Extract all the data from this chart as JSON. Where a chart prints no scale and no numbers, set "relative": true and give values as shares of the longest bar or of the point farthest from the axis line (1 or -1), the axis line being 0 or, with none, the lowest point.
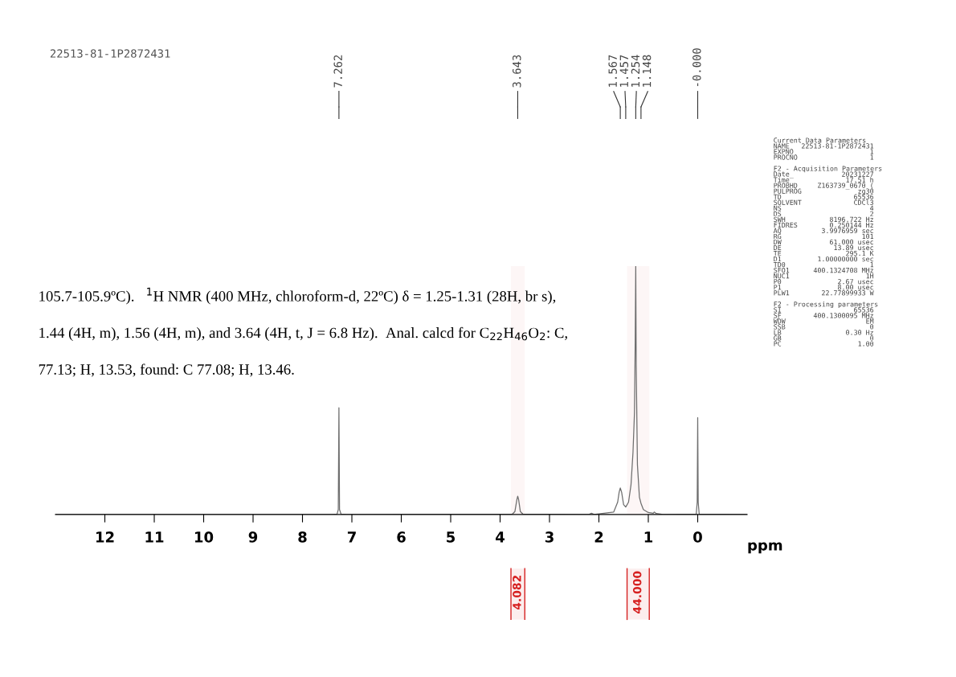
{
  "chart_data": {
    "type": "line",
    "relative": true,
    "title": "22513-81-1P2872431",
    "xlabel": "ppm",
    "x": [
      13,
      7.4,
      7.3,
      7.275,
      7.262,
      7.25,
      7.22,
      7.1,
      3.75,
      3.7,
      3.66,
      3.643,
      3.625,
      3.59,
      3.54,
      2.2,
      2.15,
      2.1,
      1.7,
      1.62,
      1.59,
      1.567,
      1.54,
      1.5,
      1.457,
      1.4,
      1.35,
      1.31,
      1.28,
      1.265,
      1.254,
      1.245,
      1.22,
      1.18,
      1.148,
      1.1,
      1.0,
      0.9,
      0.88,
      0.84,
      0.7,
      0.03,
      0.01,
      0.0,
      -0.01,
      -0.03,
      -1
    ],
    "series": [
      {
        "color": "#6e6e6e",
        "values": [
          0,
          0,
          0.002,
          0.02,
          0.43,
          0.02,
          0.002,
          0,
          0.002,
          0.012,
          0.06,
          0.074,
          0.06,
          0.012,
          0.002,
          0,
          0.005,
          0,
          0.01,
          0.05,
          0.09,
          0.107,
          0.09,
          0.04,
          0.03,
          0.05,
          0.12,
          0.25,
          0.41,
          0.7,
          1.0,
          0.6,
          0.2,
          0.07,
          0.045,
          0.02,
          0.008,
          0.005,
          0.01,
          0.004,
          0,
          0.002,
          0.05,
          0.39,
          0.05,
          0.002,
          0
        ]
      }
    ],
    "xlim": [
      13,
      -1
    ],
    "xticks": [
      12,
      11,
      10,
      9,
      8,
      7,
      6,
      5,
      4,
      3,
      2,
      1,
      0
    ],
    "grid": false,
    "legend": false,
    "marker": "none",
    "line_style": "solid",
    "bands": [
      {
        "axis": "x",
        "from": 3.78,
        "to": 3.5,
        "label": "4.082",
        "color": "#d62020"
      },
      {
        "axis": "x",
        "from": 1.43,
        "to": 0.98,
        "label": "44.000",
        "color": "#d62020"
      }
    ],
    "annotations": [
      {
        "text": "7.262",
        "x": 7.262
      },
      {
        "text": "3.643",
        "x": 3.643
      },
      {
        "text": "1.567",
        "x": 1.567
      },
      {
        "text": "1.457",
        "x": 1.457
      },
      {
        "text": "1.254",
        "x": 1.254
      },
      {
        "text": "1.148",
        "x": 1.148
      },
      {
        "text": "-0.000",
        "x": 0.0
      },
      "105.7-105.9ºC).   $^{1}$H NMR (400 MHz, chloroform-d, 22ºC) δ = 1.25-1.31 (28H, br s),",
      "1.44 (4H, m), 1.56 (4H, m), and 3.64 (4H, t, J = 6.8 Hz).  Anal. calcd for C$_{22}$H$_{46}$O$_{2}$: C,",
      "77.13; H, 13.53, found: C 77.08; H, 13.46.",
      "Current Data Parameters",
      "NAME\t22513-81-1P2872431",
      "EXPNO\t1",
      "PROCNO\t1",
      "F2 - Acquisition Parameters",
      "Date_\t20231227",
      "Time\t17.51 h",
      "PROBHD\tZ163739_0670 (",
      "PULPROG\tzg30",
      "TD\t65536",
      "SOLVENT\tCDCl3",
      "NS\t4",
      "DS\t2",
      "SWH\t8196.722 Hz",
      "FIDRES\t0.250144 Hz",
      "AQ\t3.9976959 sec",
      "RG\t101",
      "DW\t61.000 usec",
      "DE\t13.89 usec",
      "TE\t295.1 K",
      "D1\t1.00000000 sec",
      "TD0\t1",
      "SFO1\t400.1324708 MHz",
      "NUC1\t1H",
      "P0\t2.67 usec",
      "P1\t8.00 usec",
      "PLW1\t22.77899933 W",
      "F2 - Processing parameters",
      "SI\t65536",
      "SF\t400.1300095 MHz",
      "WDW\tEM",
      "SSB\t0",
      "LB\t0.30 Hz",
      "GB\t0",
      "PC\t1.00"
    ]
  }
}
